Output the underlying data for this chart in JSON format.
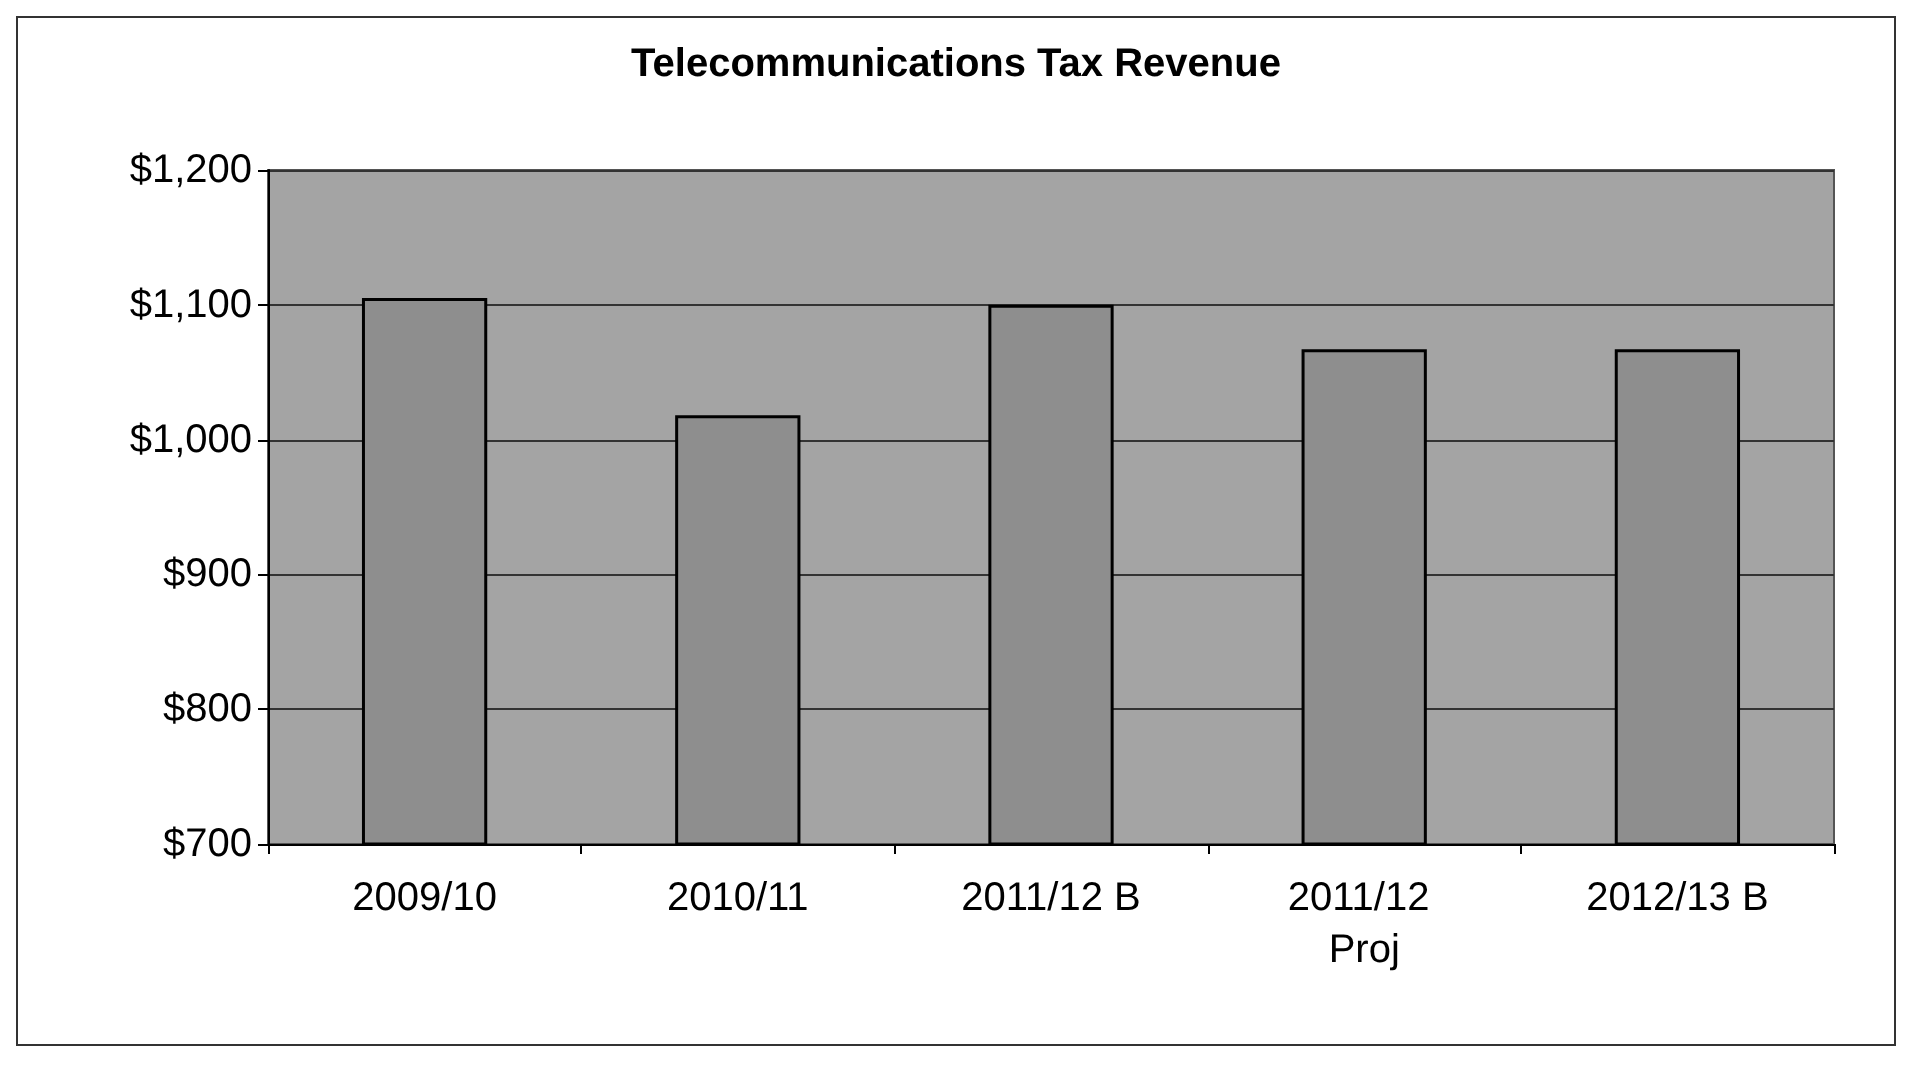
{
  "chart_data": {
    "type": "bar",
    "title": "Telecommunications Tax Revenue",
    "categories": [
      "2009/10",
      "2010/11",
      "2011/12 B",
      "2011/12 Proj",
      "2012/13 B"
    ],
    "values": [
      1105,
      1018,
      1100,
      1067,
      1067
    ],
    "color": "#8e8e8e",
    "ylim": [
      700,
      1200
    ],
    "yticks": [
      {
        "value": 700,
        "label": "$700"
      },
      {
        "value": 800,
        "label": "$800"
      },
      {
        "value": 900,
        "label": "$900"
      },
      {
        "value": 1000,
        "label": "$1,000"
      },
      {
        "value": 1100,
        "label": "$1,100"
      },
      {
        "value": 1200,
        "label": "$1,200"
      }
    ],
    "grid": true
  }
}
